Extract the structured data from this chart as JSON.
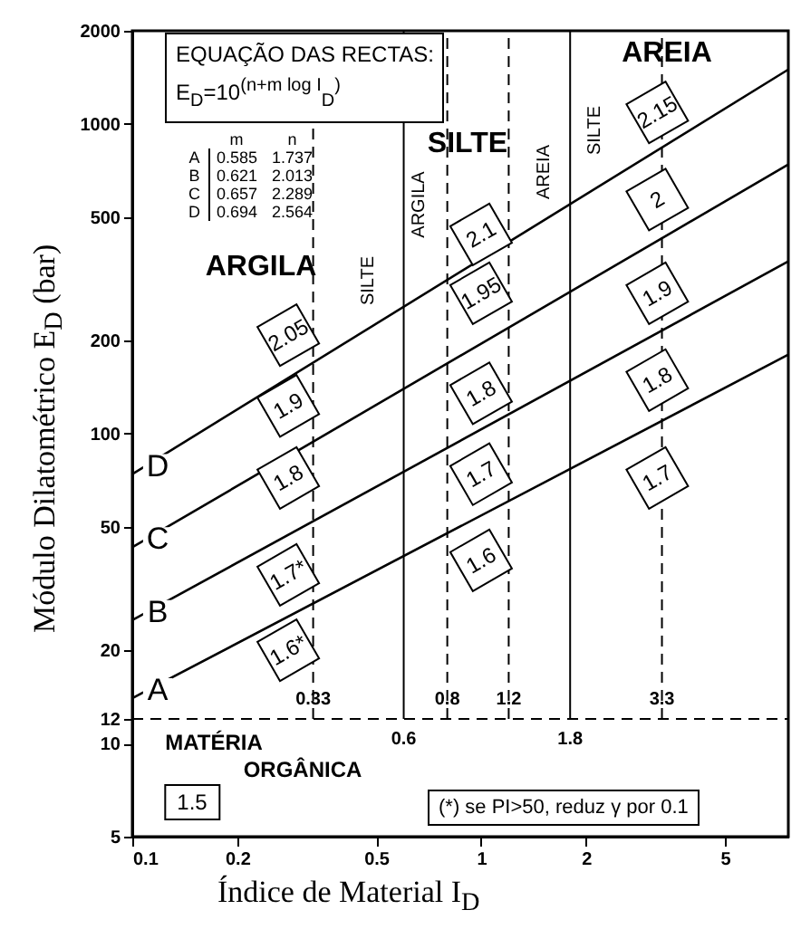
{
  "chart_data": {
    "type": "line",
    "xlabel": "Índice de Material  I$_{D}$",
    "ylabel": "Módulo Dilatométrico  E$_{D}$ (bar)",
    "log": "xy",
    "xlim": [
      0.1,
      7.6
    ],
    "ylim": [
      5,
      2000
    ],
    "xticks": [
      0.1,
      0.2,
      0.5,
      1,
      2,
      5
    ],
    "yticks": [
      5,
      10,
      12,
      20,
      50,
      100,
      200,
      500,
      1000,
      2000
    ],
    "x": [
      0.1,
      7.6
    ],
    "grid": false,
    "legend": false,
    "marker": "none",
    "line_style": "solid",
    "series": [
      {
        "name": "A",
        "color": "#000000",
        "values": [
          14,
          180
        ]
      },
      {
        "name": "B",
        "color": "#000000",
        "values": [
          25,
          360
        ]
      },
      {
        "name": "C",
        "color": "#000000",
        "values": [
          43,
          740
        ]
      },
      {
        "name": "D",
        "color": "#000000",
        "values": [
          74,
          1500
        ]
      }
    ],
    "ref_lines": [
      {
        "axis": "y",
        "value": 12,
        "label": null,
        "line_style": "dashed"
      },
      {
        "axis": "x",
        "value": 0.33,
        "label": "0.33",
        "line_style": "dashed"
      },
      {
        "axis": "x",
        "value": 0.6,
        "label": "0.6",
        "line_style": "solid"
      },
      {
        "axis": "x",
        "value": 0.8,
        "label": "0.8",
        "line_style": "dashed"
      },
      {
        "axis": "x",
        "value": 1.2,
        "label": "1.2",
        "line_style": "dashed"
      },
      {
        "axis": "x",
        "value": 1.8,
        "label": "1.8",
        "line_style": "solid"
      },
      {
        "axis": "x",
        "value": 3.3,
        "label": "3.3",
        "line_style": "dashed"
      }
    ],
    "annotations": [
      "EQUAÇÃO DAS RECTAS:",
      "E$_{D}$=10$^{(n+m log I}$$_{D}$$^{)}$",
      "m n",
      "A 0.585 1.737",
      "B 0.621 2.013",
      "C 0.657 2.289",
      "D 0.694 2.564",
      "(*) se PI>50, reduz γ por 0.1",
      {
        "text": "2.05",
        "x": 0.28,
        "y": 208
      },
      {
        "text": "1.9",
        "x": 0.28,
        "y": 123
      },
      {
        "text": "1.8",
        "x": 0.28,
        "y": 72
      },
      {
        "text": "1.7*",
        "x": 0.28,
        "y": 35
      },
      {
        "text": "1.6*",
        "x": 0.28,
        "y": 20
      },
      {
        "text": "2.1",
        "x": 1.0,
        "y": 440
      },
      {
        "text": "1.95",
        "x": 1.0,
        "y": 284
      },
      {
        "text": "1.8",
        "x": 1.0,
        "y": 135
      },
      {
        "text": "1.7",
        "x": 1.0,
        "y": 74
      },
      {
        "text": "1.6",
        "x": 1.0,
        "y": 39
      },
      {
        "text": "2.15",
        "x": 3.2,
        "y": 1090
      },
      {
        "text": "2",
        "x": 3.2,
        "y": 570
      },
      {
        "text": "1.9",
        "x": 3.2,
        "y": 284
      },
      {
        "text": "1.8",
        "x": 3.2,
        "y": 149
      },
      {
        "text": "1.7",
        "x": 3.2,
        "y": 72
      },
      "ARGILA",
      "SILTE",
      "AREIA",
      "SILTE",
      "ARGILA",
      "AREIA",
      "SILTE",
      "MATÉRIA",
      "ORGÂNICA",
      "1.5"
    ]
  }
}
